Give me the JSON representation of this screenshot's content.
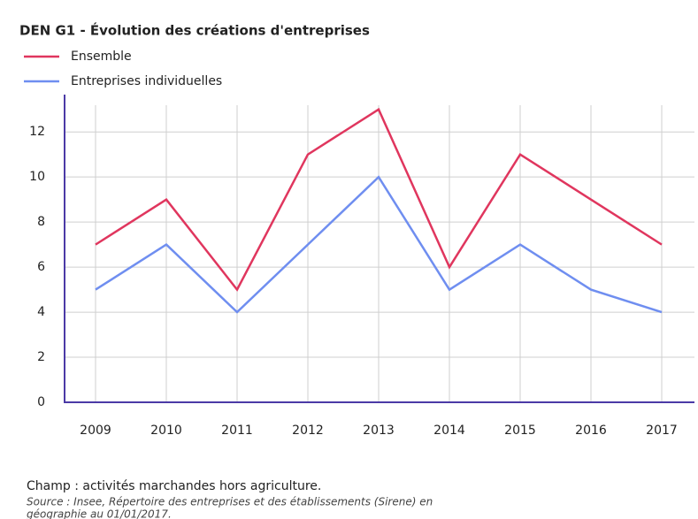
{
  "chart_data": {
    "type": "line",
    "title": "DEN G1 - Évolution des créations d'entreprises",
    "categories": [
      "2009",
      "2010",
      "2011",
      "2012",
      "2013",
      "2014",
      "2015",
      "2016",
      "2017"
    ],
    "series": [
      {
        "name": "Ensemble",
        "color": "#e0365e",
        "values": [
          7,
          9,
          5,
          11,
          13,
          6,
          11,
          9,
          7
        ]
      },
      {
        "name": "Entreprises individuelles",
        "color": "#6f8ef0",
        "values": [
          5,
          7,
          4,
          7,
          10,
          5,
          7,
          5,
          4
        ]
      }
    ],
    "ylim": [
      0,
      13.5
    ],
    "yticks": [
      0,
      2,
      4,
      6,
      8,
      10,
      12
    ],
    "grid": true,
    "legend": "top-left",
    "notes": [
      "Champ : activités marchandes hors agriculture.",
      "Source : Insee, Répertoire des entreprises et des établissements (Sirene) en",
      "géographie au 01/01/2017."
    ]
  }
}
